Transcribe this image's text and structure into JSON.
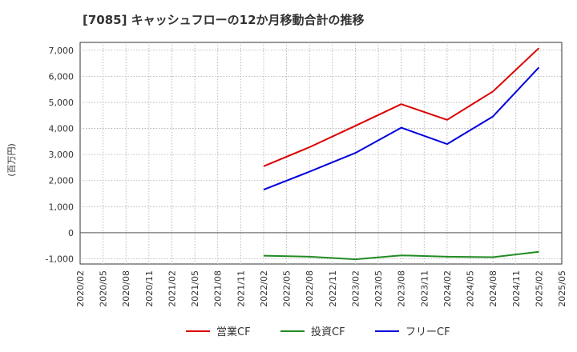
{
  "chart_data": {
    "type": "line",
    "title": "[7085]  キャッシュフローの12か月移動合計の推移",
    "ylabel": "(百万円)",
    "xlabel": "",
    "ylim": [
      -1200,
      7300
    ],
    "yticks": [
      -1000,
      0,
      1000,
      2000,
      3000,
      4000,
      5000,
      6000,
      7000
    ],
    "ytick_labels": [
      "-1,000",
      "0",
      "1,000",
      "2,000",
      "3,000",
      "4,000",
      "5,000",
      "6,000",
      "7,000"
    ],
    "x_ticks": [
      "2020/02",
      "2020/05",
      "2020/08",
      "2020/11",
      "2021/02",
      "2021/05",
      "2021/08",
      "2021/11",
      "2022/02",
      "2022/05",
      "2022/08",
      "2022/11",
      "2023/02",
      "2023/05",
      "2023/08",
      "2023/11",
      "2024/02",
      "2024/05",
      "2024/08",
      "2024/11",
      "2025/02",
      "2025/05"
    ],
    "grid": true,
    "legend_position": "bottom",
    "series": [
      {
        "name": "営業CF",
        "color": "#dd0000",
        "x": [
          "2022/02",
          "2022/08",
          "2023/02",
          "2023/08",
          "2024/02",
          "2024/08",
          "2025/02"
        ],
        "values": [
          2550,
          3280,
          4100,
          4930,
          4330,
          5420,
          7080
        ]
      },
      {
        "name": "投資CF",
        "color": "#228b22",
        "x": [
          "2022/02",
          "2022/08",
          "2023/02",
          "2023/08",
          "2024/02",
          "2024/08",
          "2025/02"
        ],
        "values": [
          -880,
          -920,
          -1020,
          -870,
          -920,
          -940,
          -730
        ]
      },
      {
        "name": "フリーCF",
        "color": "#0000dd",
        "x": [
          "2022/02",
          "2022/08",
          "2023/02",
          "2023/08",
          "2024/02",
          "2024/08",
          "2025/02"
        ],
        "values": [
          1650,
          2340,
          3060,
          4030,
          3400,
          4460,
          6340
        ]
      }
    ]
  }
}
